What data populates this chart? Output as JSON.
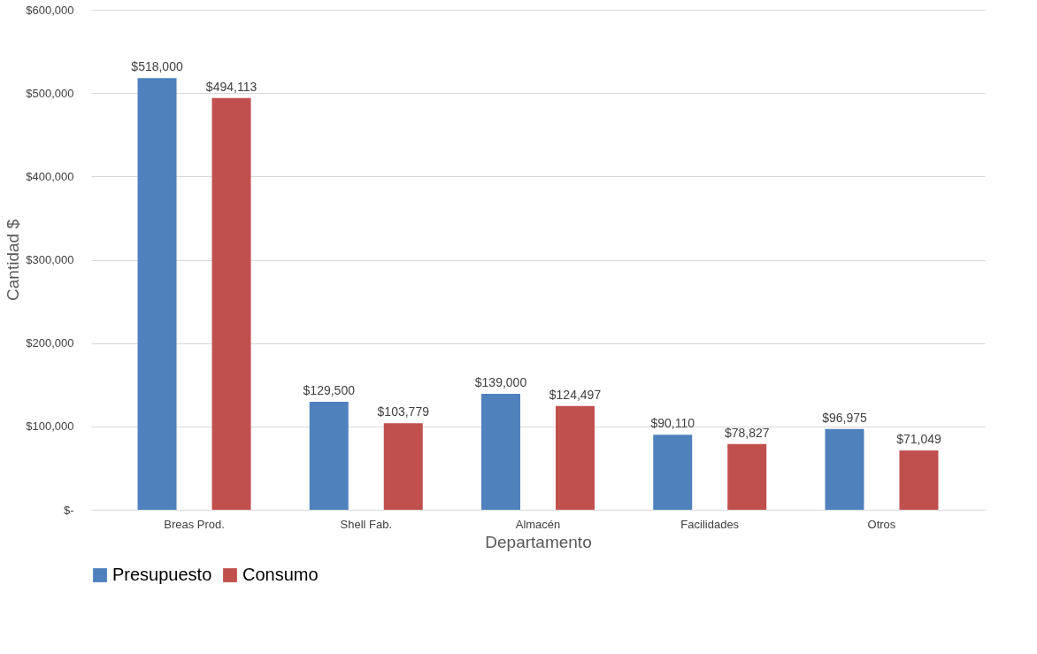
{
  "chart_data": {
    "type": "bar",
    "xlabel": "Departamento",
    "ylabel": "Cantidad $",
    "categories": [
      "Breas Prod.",
      "Shell Fab.",
      "Almacén",
      "Facilidades",
      "Otros"
    ],
    "series": [
      {
        "name": "Presupuesto",
        "color": "#4f81bd",
        "values": [
          518000,
          129500,
          139000,
          90110,
          96975
        ],
        "value_labels": [
          "$518,000",
          "$129,500",
          "$139,000",
          "$90,110",
          "$96,975"
        ]
      },
      {
        "name": "Consumo",
        "color": "#c0504d",
        "values": [
          494113,
          103779,
          124497,
          78827,
          71049
        ],
        "value_labels": [
          "$494,113",
          "$103,779",
          "$124,497",
          "$78,827",
          "$71,049"
        ]
      }
    ],
    "ylim": [
      0,
      600000
    ],
    "yticks": [
      {
        "value": 0,
        "label": "$-"
      },
      {
        "value": 100000,
        "label": "$100,000"
      },
      {
        "value": 200000,
        "label": "$200,000"
      },
      {
        "value": 300000,
        "label": "$300,000"
      },
      {
        "value": 400000,
        "label": "$400,000"
      },
      {
        "value": 500000,
        "label": "$500,000"
      },
      {
        "value": 600000,
        "label": "$600,000"
      }
    ],
    "grid": "y",
    "legend": "bottom"
  }
}
